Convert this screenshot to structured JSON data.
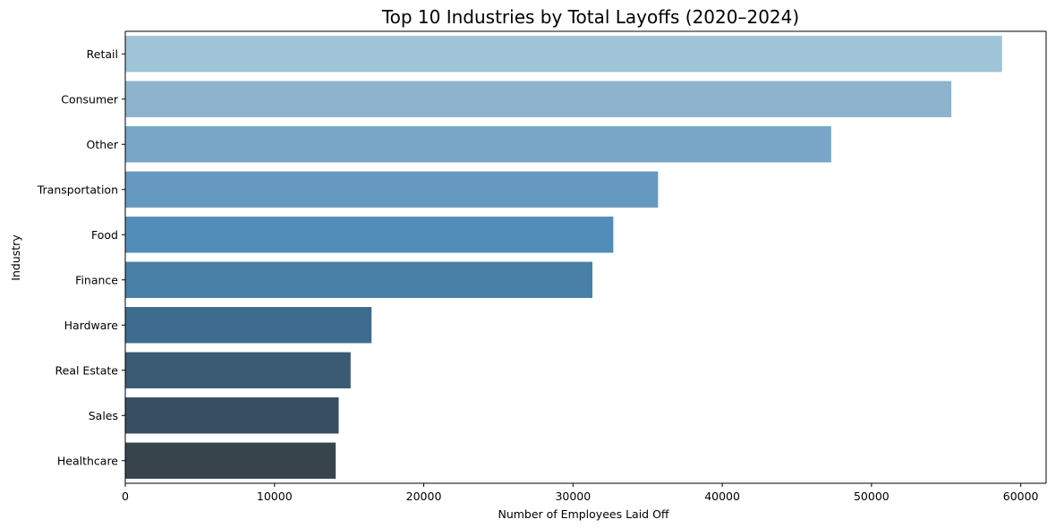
{
  "chart_data": {
    "type": "bar",
    "orientation": "horizontal",
    "title": "Top 10 Industries by Total Layoffs (2020–2024)",
    "xlabel": "Number of Employees Laid Off",
    "ylabel": "Industry",
    "categories": [
      "Retail",
      "Consumer",
      "Other",
      "Transportation",
      "Food",
      "Finance",
      "Hardware",
      "Real Estate",
      "Sales",
      "Healthcare"
    ],
    "values": [
      58750,
      55350,
      47300,
      35700,
      32700,
      31300,
      16500,
      15100,
      14300,
      14100
    ],
    "xlim": [
      0,
      61700
    ],
    "xticks": [
      0,
      10000,
      20000,
      30000,
      40000,
      50000,
      60000
    ],
    "xtick_labels": [
      "0",
      "10000",
      "20000",
      "30000",
      "40000",
      "50000",
      "60000"
    ],
    "grid": false,
    "colors": [
      "#9fc3d7",
      "#8db3cd",
      "#79a6c7",
      "#6699bf",
      "#528dba",
      "#477fa7",
      "#3e6c8e",
      "#3b5a73",
      "#384e62",
      "#37444c"
    ]
  }
}
